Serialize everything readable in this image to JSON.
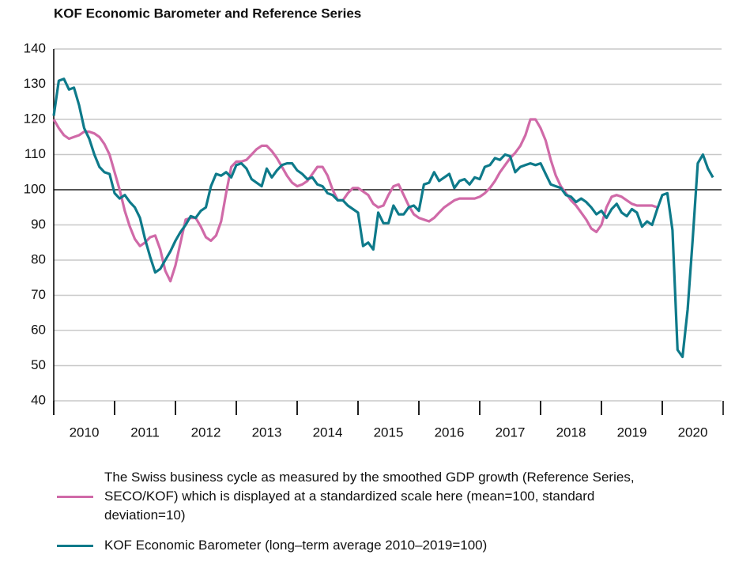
{
  "chart_data": {
    "type": "line",
    "title": "KOF Economic Barometer and Reference Series",
    "x": [
      2010,
      2010.083,
      2010.167,
      2010.25,
      2010.333,
      2010.417,
      2010.5,
      2010.583,
      2010.667,
      2010.75,
      2010.833,
      2010.917,
      2011,
      2011.083,
      2011.167,
      2011.25,
      2011.333,
      2011.417,
      2011.5,
      2011.583,
      2011.667,
      2011.75,
      2011.833,
      2011.917,
      2012,
      2012.083,
      2012.167,
      2012.25,
      2012.333,
      2012.417,
      2012.5,
      2012.583,
      2012.667,
      2012.75,
      2012.833,
      2012.917,
      2013,
      2013.083,
      2013.167,
      2013.25,
      2013.333,
      2013.417,
      2013.5,
      2013.583,
      2013.667,
      2013.75,
      2013.833,
      2013.917,
      2014,
      2014.083,
      2014.167,
      2014.25,
      2014.333,
      2014.417,
      2014.5,
      2014.583,
      2014.667,
      2014.75,
      2014.833,
      2014.917,
      2015,
      2015.083,
      2015.167,
      2015.25,
      2015.333,
      2015.417,
      2015.5,
      2015.583,
      2015.667,
      2015.75,
      2015.833,
      2015.917,
      2016,
      2016.083,
      2016.167,
      2016.25,
      2016.333,
      2016.417,
      2016.5,
      2016.583,
      2016.667,
      2016.75,
      2016.833,
      2016.917,
      2017,
      2017.083,
      2017.167,
      2017.25,
      2017.333,
      2017.417,
      2017.5,
      2017.583,
      2017.667,
      2017.75,
      2017.833,
      2017.917,
      2018,
      2018.083,
      2018.167,
      2018.25,
      2018.333,
      2018.417,
      2018.5,
      2018.583,
      2018.667,
      2018.75,
      2018.833,
      2018.917,
      2019,
      2019.083,
      2019.167,
      2019.25,
      2019.333,
      2019.417,
      2019.5,
      2019.583,
      2019.667,
      2019.75,
      2019.833,
      2019.917,
      2020,
      2020.083,
      2020.167,
      2020.25,
      2020.333,
      2020.417,
      2020.5,
      2020.583,
      2020.667,
      2020.75,
      2020.833
    ],
    "series": [
      {
        "name": "The Swiss business cycle as measured by the smoothed GDP growth (Reference Series, SECO/KOF) which is displayed at a standardized scale here (mean=100, standard deviation=10)",
        "color": "#d06aa8",
        "values": [
          120,
          117.5,
          115.5,
          114.5,
          115,
          115.5,
          116.5,
          116.5,
          116,
          115,
          113,
          110,
          105,
          100,
          94,
          89.5,
          86,
          84,
          85,
          86.5,
          87,
          83,
          77,
          74,
          78.5,
          85,
          91.5,
          92,
          92,
          89.5,
          86.5,
          85.5,
          87,
          91,
          99,
          106.5,
          108,
          108,
          108.5,
          110,
          111.5,
          112.5,
          112.5,
          111,
          109,
          106.5,
          104,
          102,
          101,
          101.5,
          102.5,
          104.5,
          106.5,
          106.5,
          104,
          100,
          97,
          97,
          99,
          100.5,
          100.5,
          99.5,
          98.5,
          96,
          95,
          95.5,
          98.5,
          101,
          101.5,
          98.5,
          95.5,
          93,
          92,
          91.5,
          91,
          92,
          93.5,
          95,
          96,
          97,
          97.5,
          97.5,
          97.5,
          97.5,
          98,
          99,
          100.5,
          102.5,
          105,
          107,
          109,
          110.5,
          112.5,
          115.5,
          120,
          120,
          117.5,
          114,
          108.5,
          104,
          101,
          99,
          97,
          95.5,
          93.5,
          91.5,
          89,
          88,
          90,
          95,
          98,
          98.5,
          98,
          97,
          96,
          95.5,
          95.5,
          95.5,
          95.5,
          95,
          null,
          null,
          null,
          null,
          null,
          null,
          null,
          null,
          null,
          null,
          null
        ]
      },
      {
        "name": "KOF Economic Barometer (long–term average 2010–2019=100)",
        "color": "#0e7a8a",
        "values": [
          121,
          131,
          131.5,
          128.5,
          129,
          124,
          117.5,
          114.5,
          110,
          106.5,
          105,
          104.5,
          99,
          97.5,
          98.5,
          96.5,
          95,
          92,
          86,
          81,
          76.5,
          77.5,
          80,
          82.5,
          85.5,
          88,
          90,
          92.5,
          92,
          94,
          95,
          101,
          104.5,
          104,
          105,
          103.5,
          107,
          107.5,
          106,
          103,
          102,
          101,
          106,
          103.5,
          105.5,
          107,
          107.5,
          107.5,
          105.5,
          104.5,
          103,
          103.5,
          101.5,
          101,
          99,
          98.5,
          97,
          97,
          95.5,
          94.5,
          93.5,
          84,
          85,
          83,
          93.5,
          90.5,
          90.5,
          95.5,
          93,
          93,
          95,
          95.5,
          94,
          101.5,
          102,
          105,
          102.5,
          103.5,
          104.5,
          100.5,
          102.5,
          103,
          101.5,
          103.5,
          103,
          106.5,
          107,
          109,
          108.5,
          110,
          109.5,
          105,
          106.5,
          107,
          107.5,
          107,
          107.5,
          104.5,
          101.5,
          101,
          100.5,
          98.5,
          98,
          96.5,
          97.5,
          96.5,
          95,
          93,
          94,
          92,
          94.5,
          96,
          93.5,
          92.5,
          94.5,
          93.5,
          89.5,
          91,
          90,
          94.5,
          98.5,
          99,
          88.5,
          54.5,
          52.5,
          66,
          86,
          107.5,
          110,
          106,
          103.5
        ]
      }
    ],
    "xlim": [
      2010,
      2021
    ],
    "xticks": [
      {
        "value": 2010.5,
        "label": "2010"
      },
      {
        "value": 2011.5,
        "label": "2011"
      },
      {
        "value": 2012.5,
        "label": "2012"
      },
      {
        "value": 2013.5,
        "label": "2013"
      },
      {
        "value": 2014.5,
        "label": "2014"
      },
      {
        "value": 2015.5,
        "label": "2015"
      },
      {
        "value": 2016.5,
        "label": "2016"
      },
      {
        "value": 2017.5,
        "label": "2017"
      },
      {
        "value": 2018.5,
        "label": "2018"
      },
      {
        "value": 2019.5,
        "label": "2019"
      },
      {
        "value": 2020.5,
        "label": "2020"
      }
    ],
    "ylim": [
      40,
      140
    ],
    "yticks": [
      40,
      50,
      60,
      70,
      80,
      90,
      100,
      110,
      120,
      130,
      140
    ],
    "reference_line": 100,
    "grid": true
  }
}
